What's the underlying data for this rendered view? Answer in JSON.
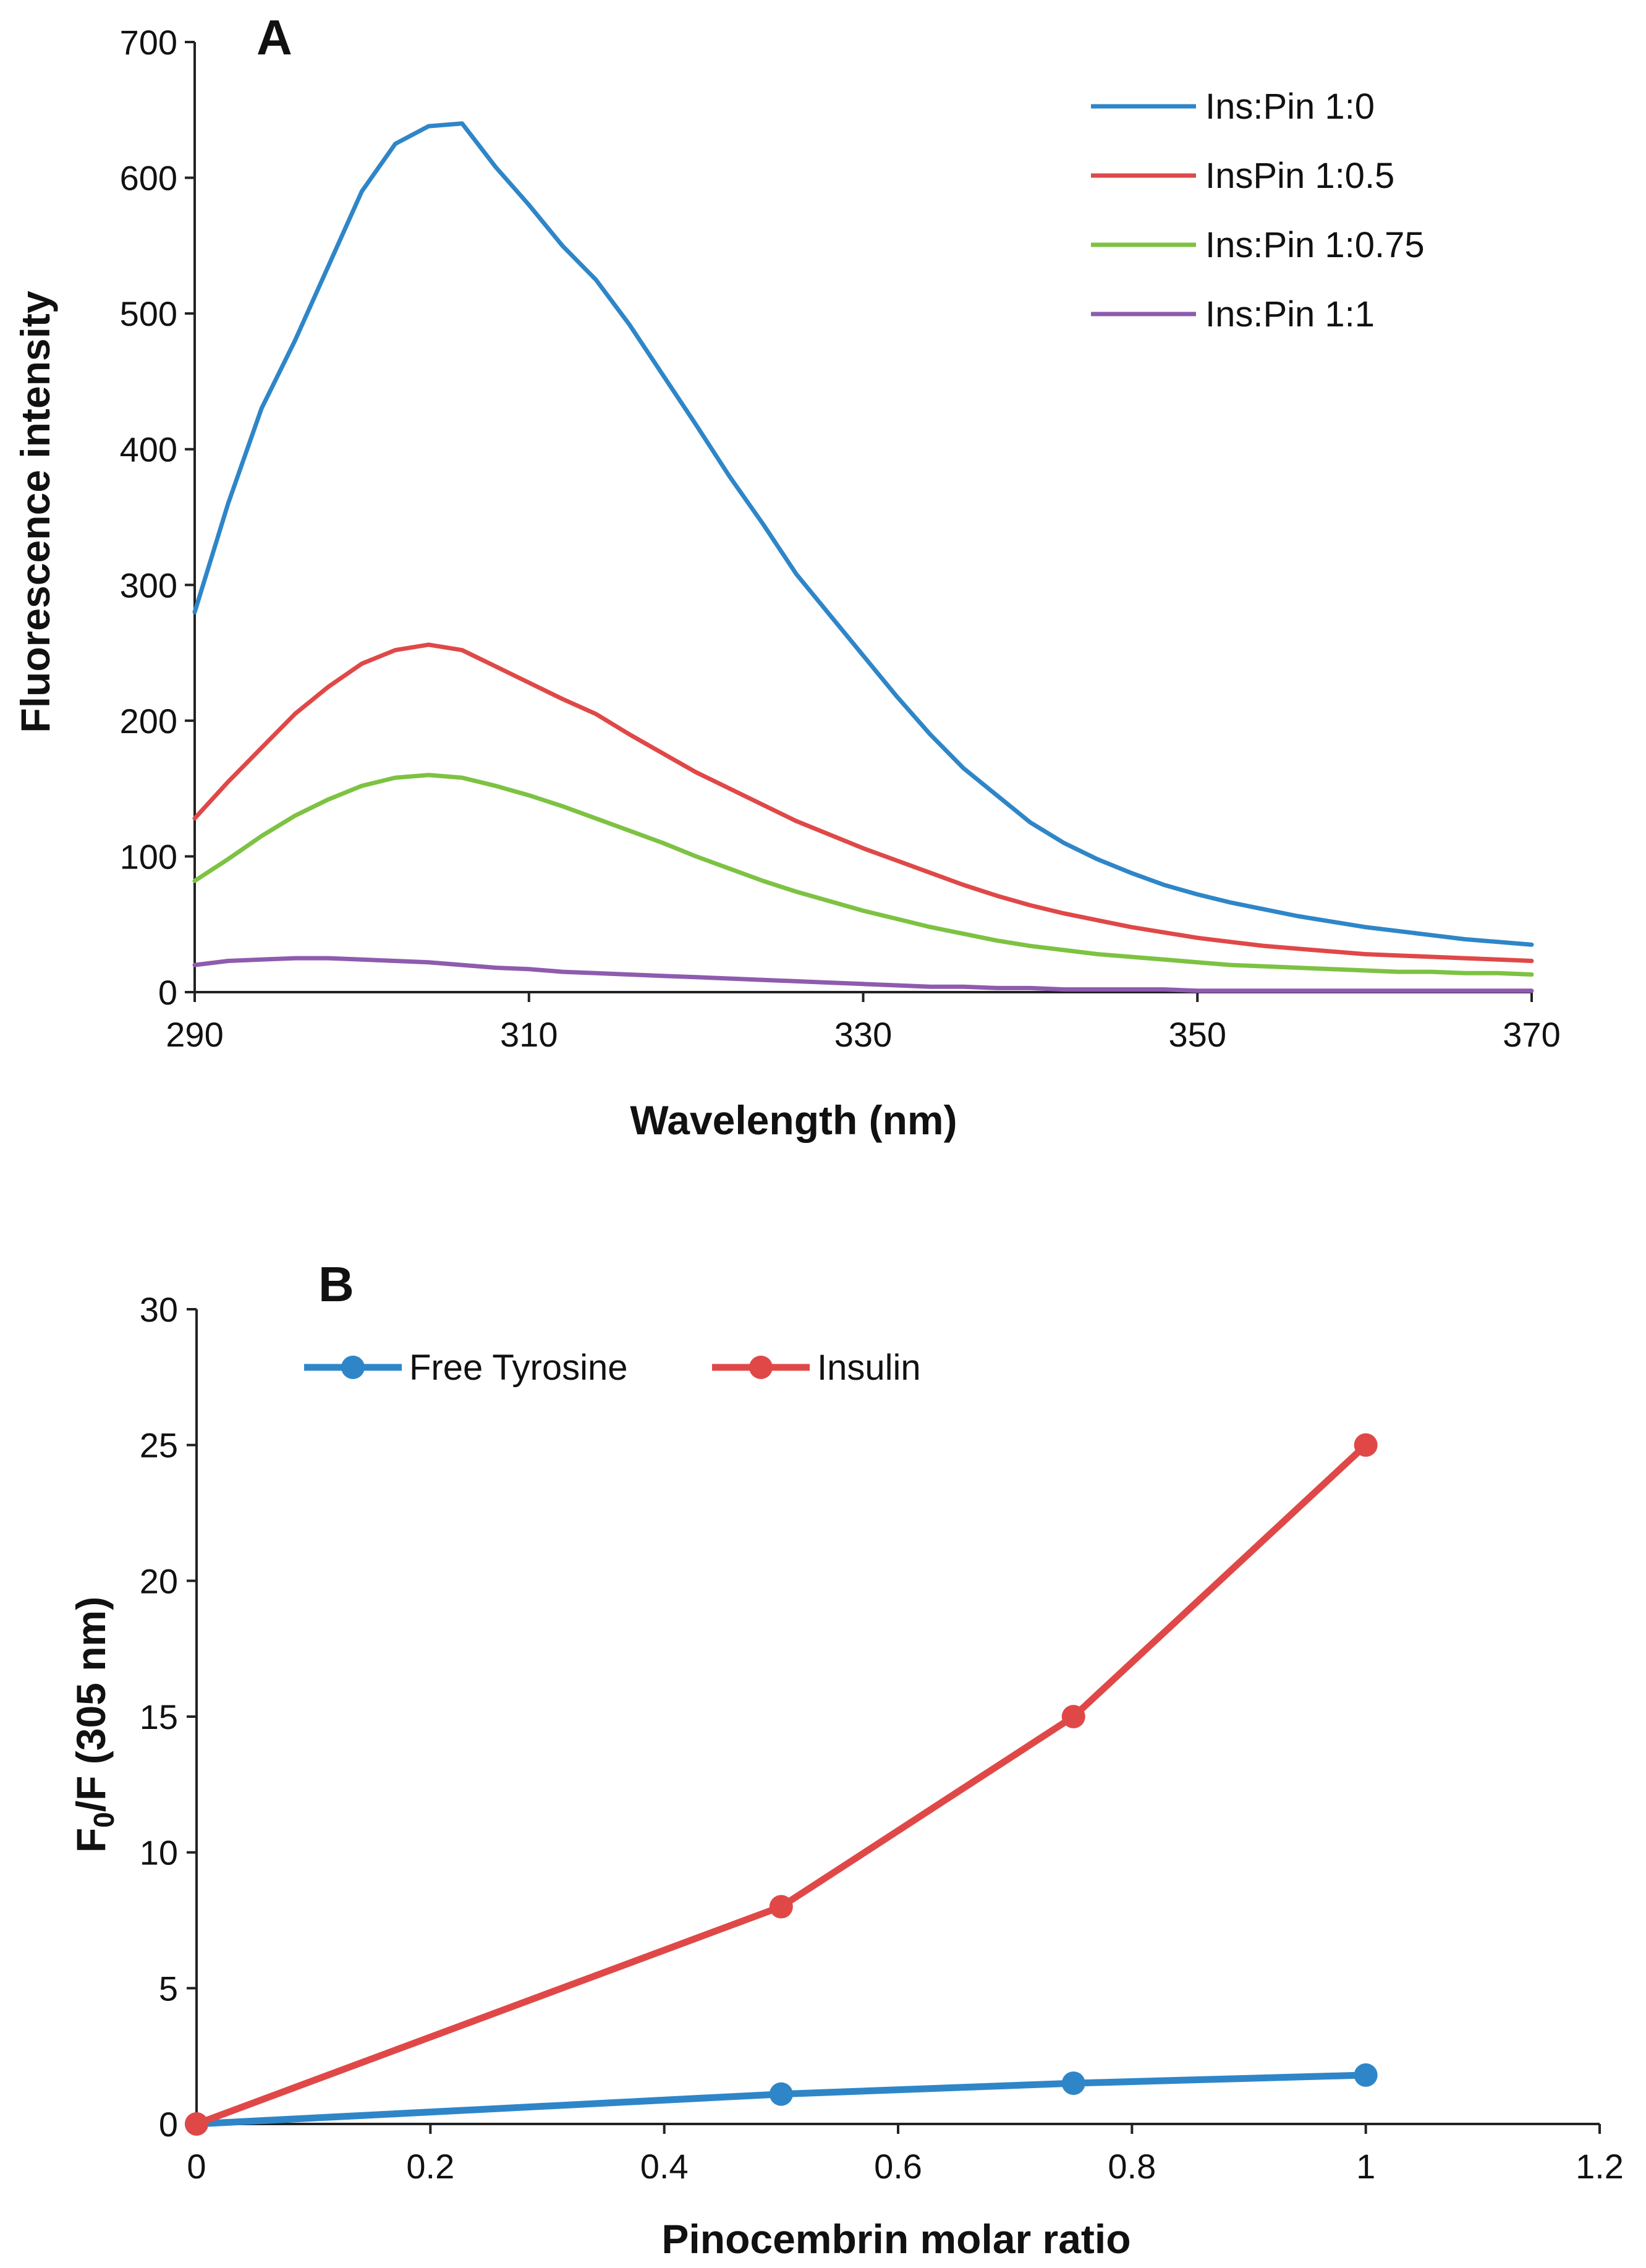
{
  "chart_data": [
    {
      "panel": "A",
      "type": "line",
      "xlabel": "Wavelength (nm)",
      "ylabel": "Fluorescence intensity",
      "xlim": [
        290,
        370
      ],
      "ylim": [
        0,
        700
      ],
      "xticks": [
        "290",
        "310",
        "330",
        "350",
        "370"
      ],
      "yticks": [
        "0",
        "100",
        "200",
        "300",
        "400",
        "500",
        "600",
        "700"
      ],
      "legend_position": "top-right",
      "series": [
        {
          "name": "Ins:Pin 1:0",
          "color": "#2E86C8",
          "x": [
            290,
            292,
            294,
            296,
            298,
            300,
            302,
            304,
            306,
            308,
            310,
            312,
            314,
            316,
            318,
            320,
            322,
            324,
            326,
            328,
            330,
            332,
            334,
            336,
            338,
            340,
            342,
            344,
            346,
            348,
            350,
            352,
            354,
            356,
            358,
            360,
            362,
            364,
            366,
            368,
            370
          ],
          "y": [
            280,
            360,
            430,
            480,
            535,
            590,
            625,
            638,
            640,
            608,
            580,
            550,
            525,
            492,
            455,
            418,
            380,
            345,
            308,
            278,
            248,
            218,
            190,
            165,
            145,
            125,
            110,
            98,
            88,
            79,
            72,
            66,
            61,
            56,
            52,
            48,
            45,
            42,
            39,
            37,
            35
          ]
        },
        {
          "name": "InsPin 1:0.5",
          "color": "#E04848",
          "x": [
            290,
            292,
            294,
            296,
            298,
            300,
            302,
            304,
            306,
            308,
            310,
            312,
            314,
            316,
            318,
            320,
            322,
            324,
            326,
            328,
            330,
            332,
            334,
            336,
            338,
            340,
            342,
            344,
            346,
            348,
            350,
            352,
            354,
            356,
            358,
            360,
            362,
            364,
            366,
            368,
            370
          ],
          "y": [
            128,
            155,
            180,
            205,
            225,
            242,
            252,
            256,
            252,
            240,
            228,
            216,
            205,
            190,
            176,
            162,
            150,
            138,
            126,
            116,
            106,
            97,
            88,
            79,
            71,
            64,
            58,
            53,
            48,
            44,
            40,
            37,
            34,
            32,
            30,
            28,
            27,
            26,
            25,
            24,
            23
          ]
        },
        {
          "name": "Ins:Pin 1:0.75",
          "color": "#7DC242",
          "x": [
            290,
            292,
            294,
            296,
            298,
            300,
            302,
            304,
            306,
            308,
            310,
            312,
            314,
            316,
            318,
            320,
            322,
            324,
            326,
            328,
            330,
            332,
            334,
            336,
            338,
            340,
            342,
            344,
            346,
            348,
            350,
            352,
            354,
            356,
            358,
            360,
            362,
            364,
            366,
            368,
            370
          ],
          "y": [
            82,
            98,
            115,
            130,
            142,
            152,
            158,
            160,
            158,
            152,
            145,
            137,
            128,
            119,
            110,
            100,
            91,
            82,
            74,
            67,
            60,
            54,
            48,
            43,
            38,
            34,
            31,
            28,
            26,
            24,
            22,
            20,
            19,
            18,
            17,
            16,
            15,
            15,
            14,
            14,
            13
          ]
        },
        {
          "name": "Ins:Pin 1:1",
          "color": "#8E5BAE",
          "x": [
            290,
            292,
            294,
            296,
            298,
            300,
            302,
            304,
            306,
            308,
            310,
            312,
            314,
            316,
            318,
            320,
            322,
            324,
            326,
            328,
            330,
            332,
            334,
            336,
            338,
            340,
            342,
            344,
            346,
            348,
            350,
            352,
            354,
            356,
            358,
            360,
            362,
            364,
            366,
            368,
            370
          ],
          "y": [
            20,
            23,
            24,
            25,
            25,
            24,
            23,
            22,
            20,
            18,
            17,
            15,
            14,
            13,
            12,
            11,
            10,
            9,
            8,
            7,
            6,
            5,
            4,
            4,
            3,
            3,
            2,
            2,
            2,
            2,
            1,
            1,
            1,
            1,
            1,
            1,
            1,
            1,
            1,
            1,
            1
          ]
        }
      ]
    },
    {
      "panel": "B",
      "type": "line",
      "xlabel": "Pinocembrin molar ratio",
      "ylabel": "F0/F (305 nm)",
      "ylabel_main": "F",
      "ylabel_sub": "0",
      "ylabel_rest": "/F (305 nm)",
      "xlim": [
        0,
        1.2
      ],
      "ylim": [
        0,
        30
      ],
      "xticks": [
        "0",
        "0.2",
        "0.4",
        "0.6",
        "0.8",
        "1",
        "1.2"
      ],
      "yticks": [
        "0",
        "5",
        "10",
        "15",
        "20",
        "25",
        "30"
      ],
      "legend_position": "top-left",
      "series": [
        {
          "name": "Free Tyrosine",
          "color": "#2E86C8",
          "x": [
            0,
            0.5,
            0.75,
            1
          ],
          "y": [
            0,
            1.1,
            1.5,
            1.8
          ]
        },
        {
          "name": "Insulin",
          "color": "#E04848",
          "x": [
            0,
            0.5,
            0.75,
            1
          ],
          "y": [
            0,
            8,
            15,
            25
          ]
        }
      ]
    }
  ]
}
